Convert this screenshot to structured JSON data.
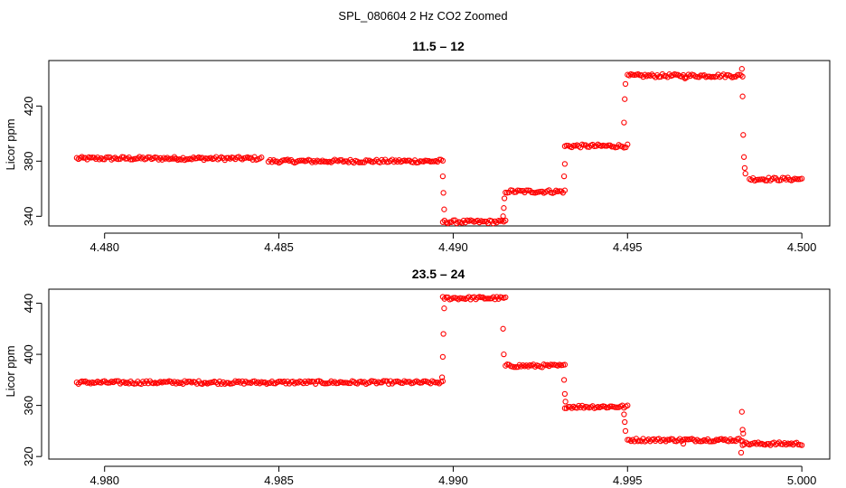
{
  "figure_title": "SPL_080604  2 Hz CO2 Zoomed",
  "colors": {
    "points": "#ff0000",
    "axis": "#000000"
  },
  "chart_data": [
    {
      "type": "scatter",
      "title": "11.5 – 12",
      "xlabel": "",
      "ylabel": "Licor ppm",
      "xlim": [
        4.4784,
        4.5008
      ],
      "ylim": [
        333,
        453
      ],
      "xticks": [
        4.48,
        4.485,
        4.49,
        4.495,
        4.5
      ],
      "xtick_labels": [
        "4.480",
        "4.485",
        "4.490",
        "4.495",
        "4.500"
      ],
      "yticks": [
        340,
        380,
        420
      ],
      "ytick_labels": [
        "340",
        "380",
        "420"
      ],
      "series": [
        {
          "name": "CO2",
          "segments": [
            {
              "x0": 4.4792,
              "x1": 4.482,
              "y0": 382,
              "y1": 382
            },
            {
              "x0": 4.482,
              "x1": 4.4845,
              "y0": 382,
              "y1": 382
            },
            {
              "x0": 4.4847,
              "x1": 4.4897,
              "y0": 380,
              "y1": 380
            },
            {
              "x0": 4.4897,
              "x1": 4.4915,
              "y0": 336,
              "y1": 336
            },
            {
              "x0": 4.4915,
              "x1": 4.4932,
              "y0": 358,
              "y1": 358
            },
            {
              "x0": 4.4932,
              "x1": 4.495,
              "y0": 391,
              "y1": 391
            },
            {
              "x0": 4.495,
              "x1": 4.4983,
              "y0": 442,
              "y1": 442
            },
            {
              "x0": 4.4985,
              "x1": 4.5,
              "y0": 367,
              "y1": 367
            }
          ],
          "transitions": [
            {
              "x": 4.4897,
              "y": 369
            },
            {
              "x": 4.48972,
              "y": 357
            },
            {
              "x": 4.48974,
              "y": 345
            },
            {
              "x": 4.49143,
              "y": 340
            },
            {
              "x": 4.49145,
              "y": 346
            },
            {
              "x": 4.49147,
              "y": 353
            },
            {
              "x": 4.49318,
              "y": 369
            },
            {
              "x": 4.4932,
              "y": 378
            },
            {
              "x": 4.4949,
              "y": 408
            },
            {
              "x": 4.49492,
              "y": 425
            },
            {
              "x": 4.49494,
              "y": 436
            },
            {
              "x": 4.49828,
              "y": 447
            },
            {
              "x": 4.4983,
              "y": 427
            },
            {
              "x": 4.49832,
              "y": 399
            },
            {
              "x": 4.49834,
              "y": 383
            },
            {
              "x": 4.49836,
              "y": 375
            },
            {
              "x": 4.49838,
              "y": 371
            },
            {
              "x": 4.49665,
              "y": 440
            }
          ]
        }
      ]
    },
    {
      "type": "scatter",
      "title": "23.5 – 24",
      "xlabel": "",
      "ylabel": "Licor ppm",
      "xlim": [
        4.9784,
        5.0008
      ],
      "ylim": [
        318,
        451
      ],
      "xticks": [
        4.98,
        4.985,
        4.99,
        4.995,
        5.0
      ],
      "xtick_labels": [
        "4.980",
        "4.985",
        "4.990",
        "4.995",
        "5.000"
      ],
      "yticks": [
        320,
        360,
        400,
        440
      ],
      "ytick_labels": [
        "320",
        "360",
        "400",
        "440"
      ],
      "series": [
        {
          "name": "CO2",
          "segments": [
            {
              "x0": 4.9792,
              "x1": 4.9897,
              "y0": 378,
              "y1": 378
            },
            {
              "x0": 4.9897,
              "x1": 4.9915,
              "y0": 444,
              "y1": 444
            },
            {
              "x0": 4.9915,
              "x1": 4.9932,
              "y0": 391,
              "y1": 391
            },
            {
              "x0": 4.9932,
              "x1": 4.995,
              "y0": 359,
              "y1": 359
            },
            {
              "x0": 4.995,
              "x1": 4.9983,
              "y0": 333,
              "y1": 333
            },
            {
              "x0": 4.9983,
              "x1": 5.0,
              "y0": 330,
              "y1": 330
            }
          ],
          "transitions": [
            {
              "x": 4.98968,
              "y": 382
            },
            {
              "x": 4.9897,
              "y": 398
            },
            {
              "x": 4.98972,
              "y": 416
            },
            {
              "x": 4.98974,
              "y": 436
            },
            {
              "x": 4.99143,
              "y": 420
            },
            {
              "x": 4.99145,
              "y": 400
            },
            {
              "x": 4.99318,
              "y": 380
            },
            {
              "x": 4.9932,
              "y": 369
            },
            {
              "x": 4.99322,
              "y": 363
            },
            {
              "x": 4.9949,
              "y": 353
            },
            {
              "x": 4.99492,
              "y": 347
            },
            {
              "x": 4.99494,
              "y": 340
            },
            {
              "x": 4.99828,
              "y": 355
            },
            {
              "x": 4.9983,
              "y": 341
            },
            {
              "x": 4.99832,
              "y": 338
            },
            {
              "x": 4.99826,
              "y": 323
            },
            {
              "x": 4.9966,
              "y": 330
            }
          ]
        }
      ]
    }
  ]
}
